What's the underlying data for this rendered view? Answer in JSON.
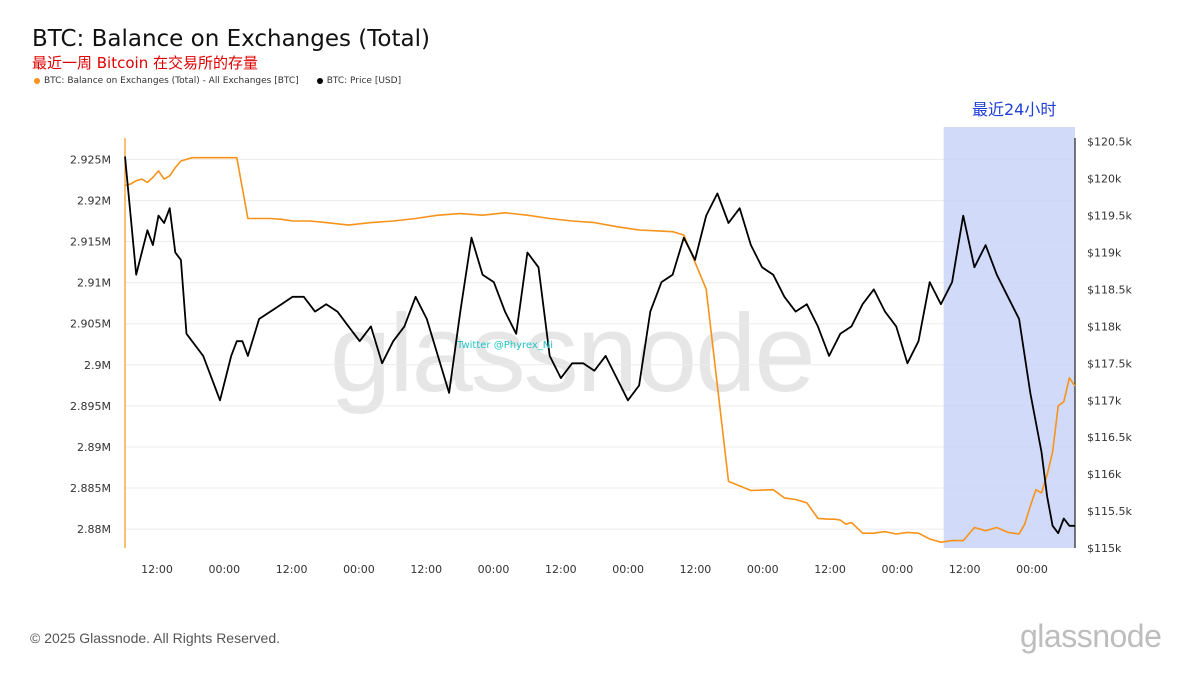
{
  "header": {
    "title": "BTC: Balance on Exchanges (Total)",
    "subtitle": "最近一周 Bitcoin 在交易所的存量",
    "legend": [
      {
        "label": "BTC: Balance on Exchanges (Total) - All Exchanges [BTC]",
        "color": "#f7931a"
      },
      {
        "label": "BTC: Price [USD]",
        "color": "#000000"
      }
    ]
  },
  "overlay": {
    "highlight_label": "最近24小时",
    "twitter_handle": "Twitter @Phyrex_Ni",
    "watermark": "glassnode"
  },
  "footer": {
    "copyright": "© 2025 Glassnode. All Rights Reserved.",
    "brand": "glassnode"
  },
  "chart_data": {
    "type": "line",
    "x_tick_labels": [
      "12:00",
      "00:00",
      "12:00",
      "00:00",
      "12:00",
      "00:00",
      "12:00",
      "00:00",
      "12:00",
      "00:00",
      "12:00",
      "00:00",
      "12:00",
      "00:00"
    ],
    "left_axis": {
      "ticks": [
        2.925,
        2.92,
        2.915,
        2.91,
        2.905,
        2.9,
        2.895,
        2.89,
        2.885,
        2.88
      ],
      "tick_labels": [
        "2.925M",
        "2.92M",
        "2.915M",
        "2.91M",
        "2.905M",
        "2.9M",
        "2.895M",
        "2.89M",
        "2.885M",
        "2.88M"
      ],
      "range": [
        2.8777,
        2.9276
      ]
    },
    "right_axis": {
      "ticks": [
        120500,
        120000,
        119500,
        119000,
        118500,
        118000,
        117500,
        117000,
        116500,
        116000,
        115500,
        115000
      ],
      "tick_labels": [
        "$120.5k",
        "$120k",
        "$119.5k",
        "$119k",
        "$118.5k",
        "$118k",
        "$117.5k",
        "$117k",
        "$116.5k",
        "$116k",
        "$115.5k",
        "$115k"
      ],
      "range": [
        115000,
        120550
      ]
    },
    "x_range_hours": [
      0,
      170
    ],
    "highlight_range_hours": [
      146.5,
      170
    ],
    "series": [
      {
        "name": "BTC: Balance on Exchanges (Total) - All Exchanges [BTC]",
        "axis": "left",
        "color": "#f7931a",
        "hours": [
          0,
          1,
          2,
          3,
          4,
          5,
          6,
          7,
          8,
          9,
          10,
          11,
          12,
          13,
          14,
          15,
          16,
          17,
          18,
          20,
          22,
          24,
          26,
          28,
          30,
          33,
          36,
          40,
          44,
          48,
          52,
          56,
          60,
          64,
          68,
          72,
          76,
          80,
          84,
          88,
          92,
          95,
          98,
          100,
          104,
          108,
          112,
          116,
          118,
          120,
          122,
          124,
          126,
          127,
          128,
          129,
          130,
          132,
          134,
          136,
          138,
          140,
          142,
          144,
          146,
          148,
          150,
          152,
          154,
          156,
          158,
          160,
          161,
          162,
          163,
          164,
          165,
          166,
          167,
          168,
          169,
          170
        ],
        "values": [
          2.9218,
          2.922,
          2.9224,
          2.9226,
          2.9222,
          2.9228,
          2.9236,
          2.9226,
          2.923,
          2.924,
          2.9248,
          2.925,
          2.9252,
          2.9252,
          2.9252,
          2.9252,
          2.9252,
          2.9252,
          2.9252,
          2.9252,
          2.9178,
          2.9178,
          2.9178,
          2.9177,
          2.9175,
          2.9175,
          2.9173,
          2.917,
          2.9173,
          2.9175,
          2.9178,
          2.9182,
          2.9184,
          2.9182,
          2.9185,
          2.9182,
          2.9178,
          2.9175,
          2.9173,
          2.9168,
          2.9164,
          2.9163,
          2.9162,
          2.9158,
          2.9092,
          2.8858,
          2.8847,
          2.8848,
          2.8838,
          2.8836,
          2.8832,
          2.8813,
          2.8812,
          2.8812,
          2.8811,
          2.8806,
          2.8808,
          2.8795,
          2.8795,
          2.8797,
          2.8794,
          2.8796,
          2.8795,
          2.8788,
          2.8784,
          2.8786,
          2.8786,
          2.8802,
          2.8798,
          2.8802,
          2.8796,
          2.8794,
          2.8806,
          2.8828,
          2.8848,
          2.8844,
          2.8866,
          2.8894,
          2.895,
          2.8955,
          2.8984,
          2.8974
        ]
      },
      {
        "name": "BTC: Price [USD]",
        "axis": "right",
        "color": "#000000",
        "hours": [
          0,
          1,
          2,
          3,
          4,
          5,
          6,
          7,
          8,
          9,
          10,
          11,
          12,
          13,
          14,
          15,
          16,
          17,
          18,
          19,
          20,
          21,
          22,
          24,
          26,
          28,
          30,
          32,
          34,
          36,
          38,
          40,
          42,
          44,
          46,
          48,
          50,
          52,
          54,
          56,
          58,
          60,
          62,
          64,
          66,
          68,
          70,
          72,
          74,
          76,
          78,
          80,
          82,
          84,
          86,
          88,
          90,
          92,
          94,
          96,
          98,
          100,
          102,
          104,
          106,
          108,
          110,
          112,
          114,
          116,
          118,
          120,
          122,
          124,
          126,
          128,
          130,
          132,
          134,
          136,
          138,
          140,
          142,
          144,
          146,
          148,
          150,
          152,
          154,
          156,
          158,
          160,
          162,
          164,
          165,
          166,
          167,
          168,
          169,
          170
        ],
        "values": [
          120300,
          119500,
          118700,
          119000,
          119300,
          119100,
          119500,
          119400,
          119600,
          119000,
          118900,
          117900,
          117800,
          117700,
          117600,
          117400,
          117200,
          117000,
          117300,
          117600,
          117800,
          117800,
          117600,
          118100,
          118200,
          118300,
          118400,
          118400,
          118200,
          118300,
          118200,
          118000,
          117800,
          118000,
          117500,
          117800,
          118000,
          118400,
          118100,
          117600,
          117100,
          118200,
          119200,
          118700,
          118600,
          118200,
          117900,
          119000,
          118800,
          117600,
          117300,
          117500,
          117500,
          117400,
          117600,
          117300,
          117000,
          117200,
          118200,
          118600,
          118700,
          119200,
          118900,
          119500,
          119800,
          119400,
          119600,
          119100,
          118800,
          118700,
          118400,
          118200,
          118300,
          118000,
          117600,
          117900,
          118000,
          118300,
          118500,
          118200,
          118000,
          117500,
          117800,
          118600,
          118300,
          118600,
          119500,
          118800,
          119100,
          118700,
          118400,
          118100,
          117100,
          116300,
          115700,
          115300,
          115200,
          115400,
          115300,
          115300
        ]
      }
    ]
  }
}
